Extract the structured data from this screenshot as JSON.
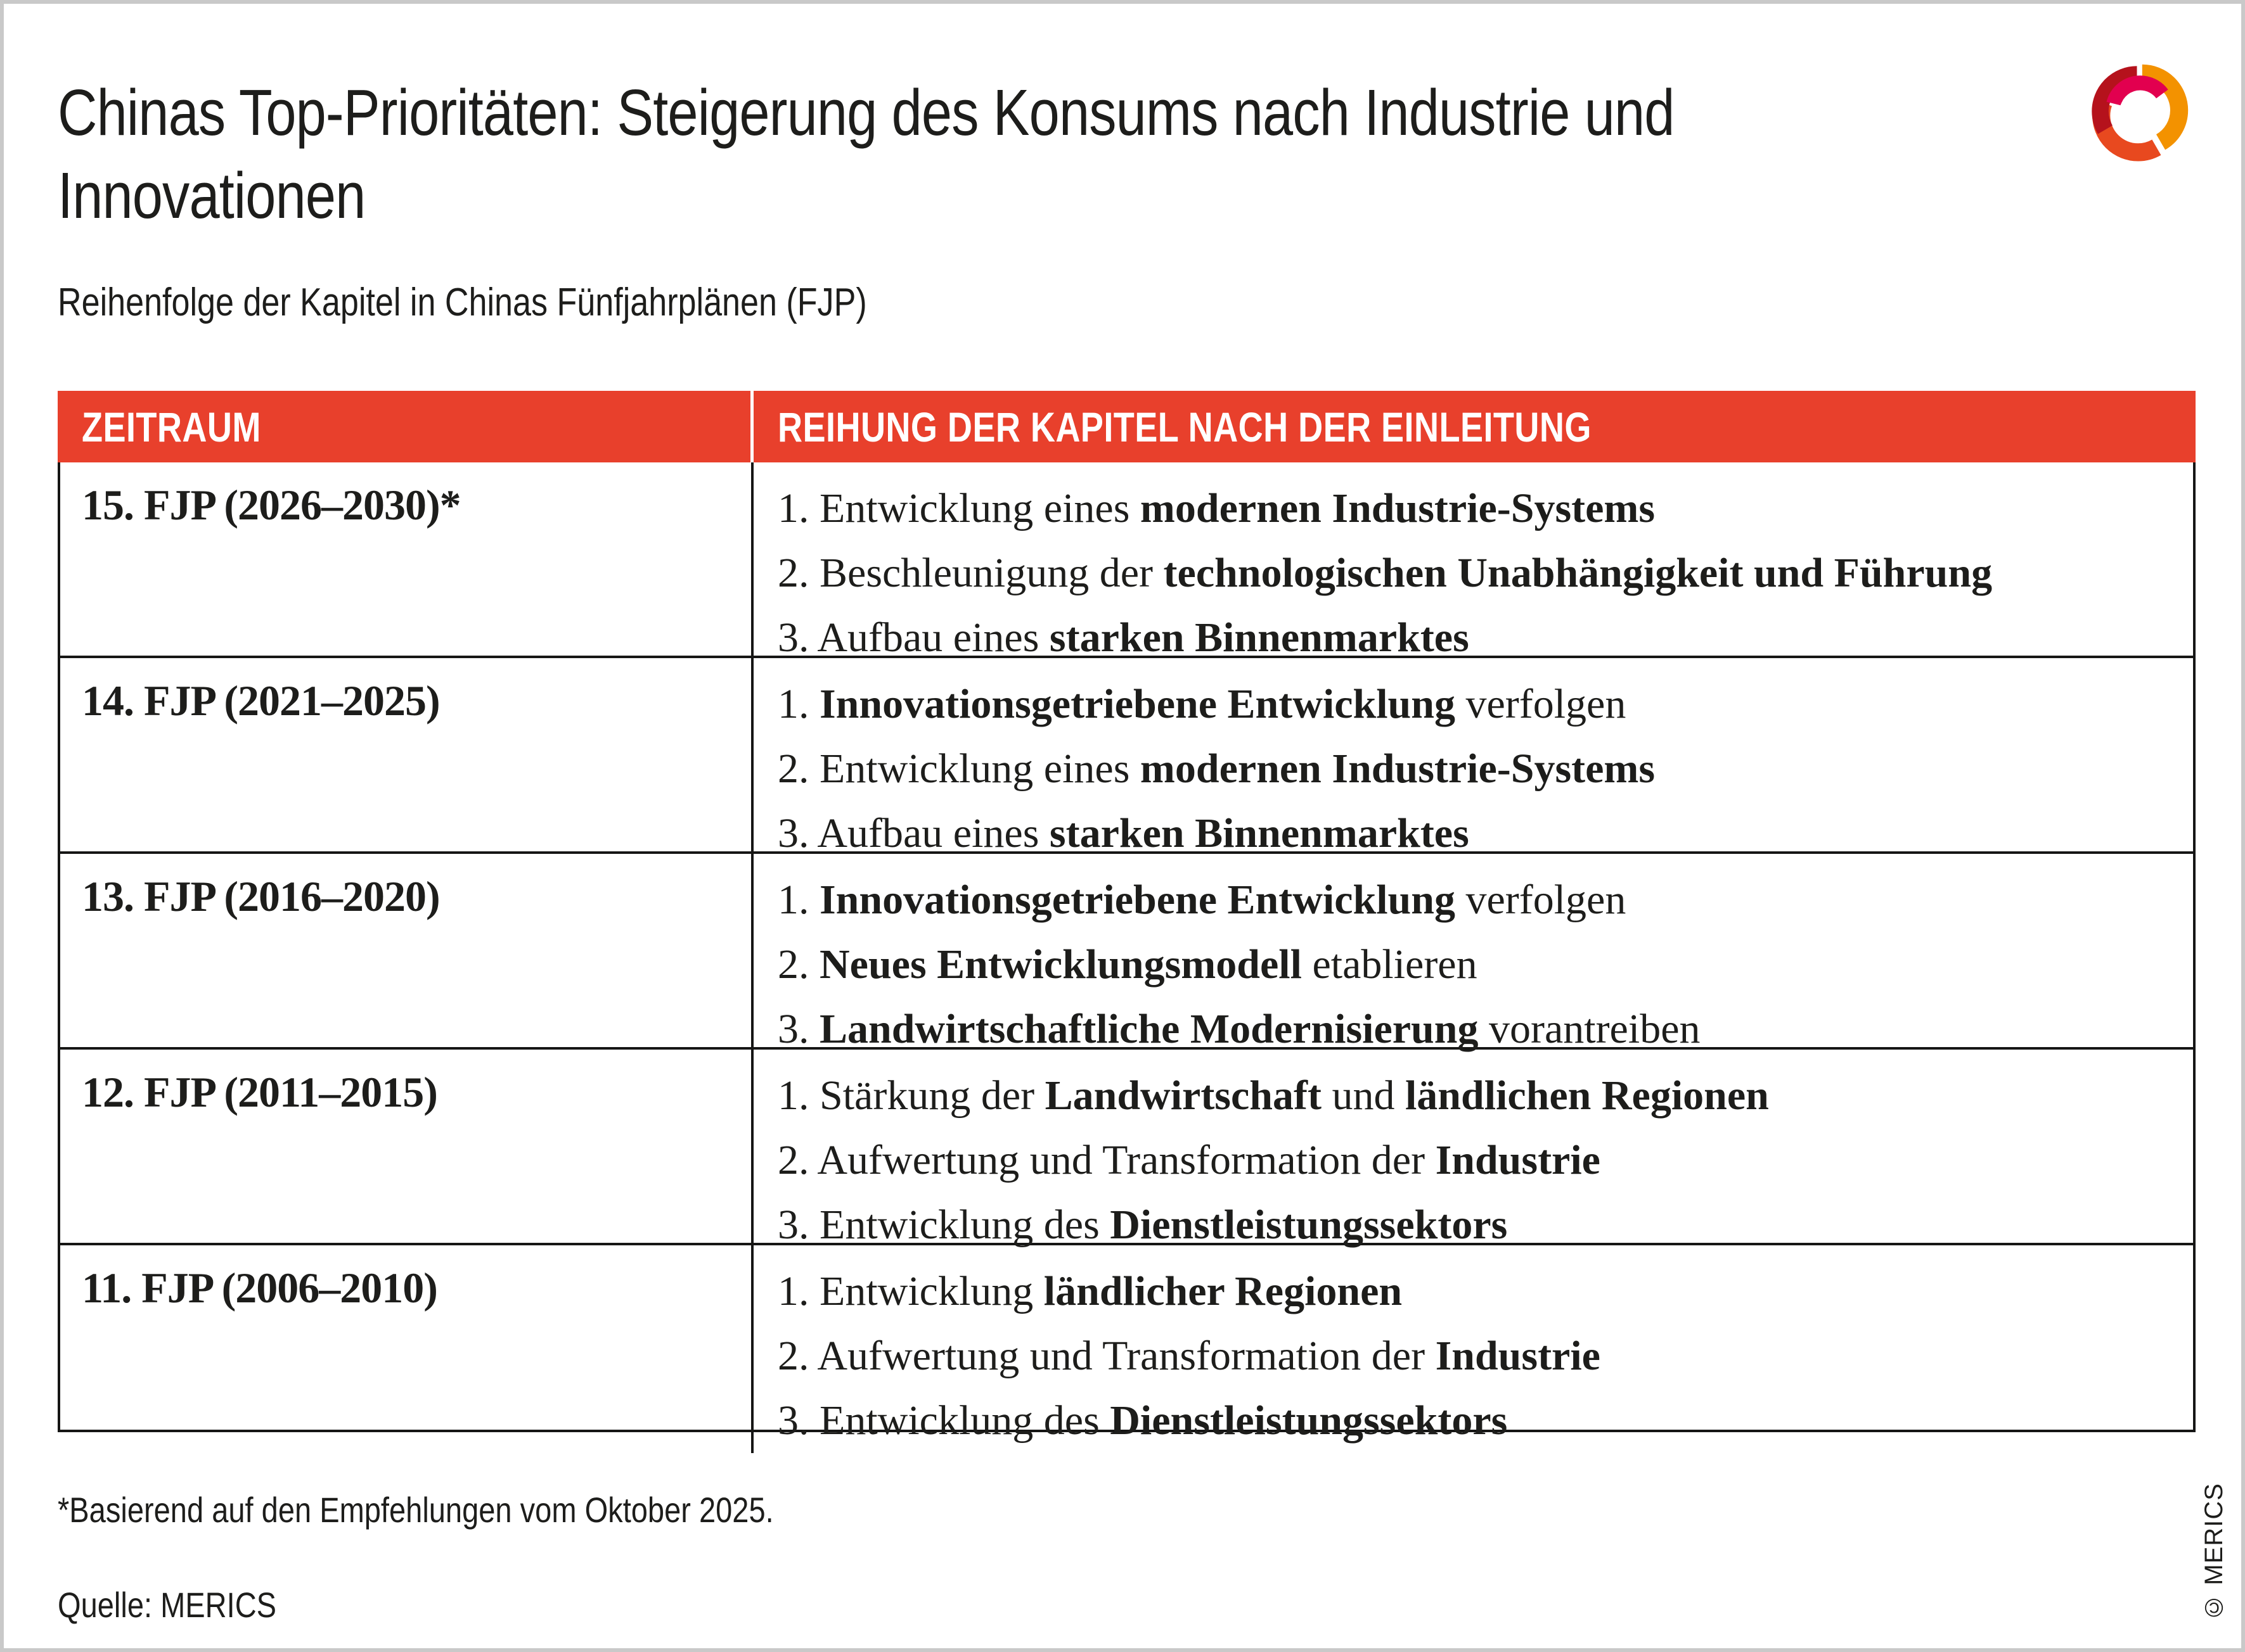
{
  "page": {
    "title_lines": [
      "Chinas Top-Prioritäten: Steigerung des Konsums nach Industrie und",
      "Innovationen"
    ],
    "subtitle": "Reihenfolge der Kapitel in Chinas Fünfjahrplänen (FJP)",
    "footnote": "*Basierend auf den Empfehlungen vom Oktober 2025.",
    "source": "Quelle: MERICS",
    "copyright": "© MERICS"
  },
  "colors": {
    "header_red": "#e8402c",
    "text": "#1d1d1b",
    "table_border": "#161615",
    "frame_gray": "#c9c9c9",
    "logo": {
      "dark_red": "#b5121c",
      "crimson": "#e2004f",
      "orange": "#f39200",
      "orange_red": "#e8491f"
    }
  },
  "table": {
    "columns": [
      "ZEITRAUM",
      "REIHUNG DER KAPITEL NACH DER EINLEITUNG"
    ],
    "rows": [
      {
        "period": "15. FJP (2026–2030)*",
        "chapters": [
          "1. Entwicklung eines **modernen Industrie-Systems**",
          "2. Beschleunigung der **technologischen Unabhängigkeit und Führung**",
          "3. Aufbau eines **starken Binnenmarktes**"
        ]
      },
      {
        "period": "14. FJP (2021–2025)",
        "chapters": [
          "1. **Innovationsgetriebene Entwicklung** verfolgen",
          "2. Entwicklung eines **modernen Industrie-Systems**",
          "3. Aufbau eines **starken Binnenmarktes**"
        ]
      },
      {
        "period": "13. FJP (2016–2020)",
        "chapters": [
          "1. **Innovationsgetriebene Entwicklung** verfolgen",
          "2. **Neues Entwicklungsmodell** etablieren",
          "3. **Landwirtschaftliche Modernisierung** vorantreiben"
        ]
      },
      {
        "period": "12. FJP (2011–2015)",
        "chapters": [
          "1. Stärkung der **Landwirtschaft** und **ländlichen Regionen**",
          "2. Aufwertung und Transformation der **Industrie**",
          "3. Entwicklung des **Dienstleistungssektors**"
        ]
      },
      {
        "period": "11. FJP (2006–2010)",
        "chapters": [
          "1. Entwicklung **ländlicher Regionen**",
          "2. Aufwertung und Transformation der **Industrie**",
          "3. Entwicklung des **Dienstleistungssektors**"
        ]
      }
    ]
  }
}
